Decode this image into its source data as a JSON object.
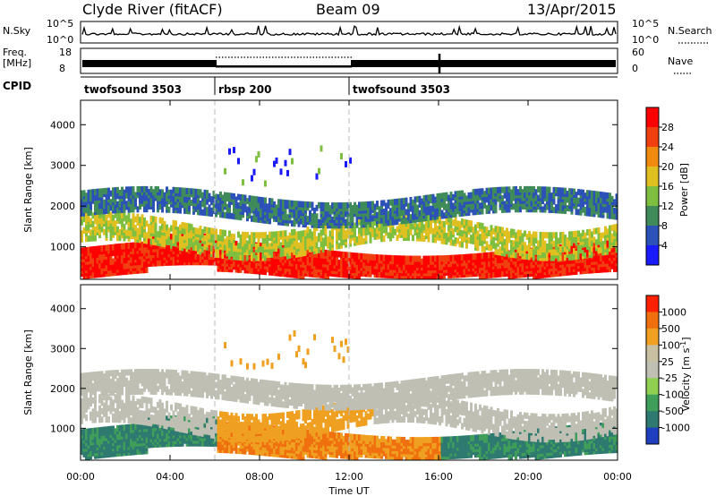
{
  "header": {
    "station": "Clyde River (fitACF)",
    "beam": "Beam 09",
    "date": "13/Apr/2015"
  },
  "noise_panel": {
    "left_label": "N.Sky",
    "right_label": "N.Search",
    "left_ticks": [
      "10^5",
      "10^0"
    ],
    "right_ticks": [
      "10^5",
      "10^0"
    ]
  },
  "freq_panel": {
    "left_label_1": "Freq.",
    "left_label_2": "[MHz]",
    "right_label": "Nave",
    "left_ticks": [
      "18",
      "8"
    ],
    "right_ticks": [
      "60",
      "0"
    ]
  },
  "cpid": {
    "label": "CPID",
    "segments": [
      {
        "name": "twofsound 3503",
        "start": 0,
        "end": 6
      },
      {
        "name": "rbsp 200",
        "start": 6,
        "end": 12
      },
      {
        "name": "twofsound 3503",
        "start": 12,
        "end": 24
      }
    ]
  },
  "chart_data": [
    {
      "type": "heatmap",
      "parameter": "power",
      "ylabel": "Slant Range [km]",
      "ylim": [
        200,
        4600
      ],
      "yticks": [
        "1000",
        "2000",
        "3000",
        "4000"
      ],
      "xlim": [
        0,
        24
      ],
      "colorbar": {
        "label": "Power [dB]",
        "ticks": [
          "4",
          "8",
          "12",
          "16",
          "20",
          "24",
          "28"
        ],
        "colors": [
          "#1a1aff",
          "#2c52b8",
          "#3f8c5a",
          "#7fbf3f",
          "#e0c020",
          "#f08a10",
          "#f04010",
          "#ff0000"
        ]
      }
    },
    {
      "type": "heatmap",
      "parameter": "velocity",
      "ylabel": "Slant Range [km]",
      "ylim": [
        200,
        4600
      ],
      "yticks": [
        "1000",
        "2000",
        "3000",
        "4000"
      ],
      "xlim": [
        0,
        24
      ],
      "xlabel": "Time UT",
      "xticks": [
        "00:00",
        "04:00",
        "08:00",
        "12:00",
        "16:00",
        "20:00",
        "00:00"
      ],
      "colorbar": {
        "label": "Velocity [m s",
        "label_sup": "-1",
        "label_end": "]",
        "ticks": [
          "1000",
          "500",
          "100",
          "25",
          "-25",
          "-100",
          "-500",
          "-1000"
        ],
        "colors": [
          "#1f3fbf",
          "#2e7a70",
          "#3f9f5a",
          "#8fd050",
          "#bfbfb4",
          "#c8c0a0",
          "#f0a020",
          "#f07010",
          "#ff2000"
        ]
      }
    }
  ]
}
